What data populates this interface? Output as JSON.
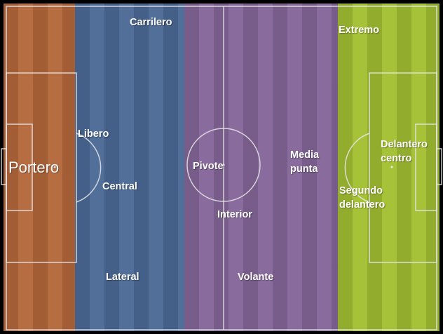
{
  "colors": {
    "goalkeeper_zone": "#b5683c",
    "defense_zone": "#4c6a97",
    "midfield_zone": "#85679a",
    "attack_zone": "#a3c033",
    "pitch_lines": "#e8e8e8"
  },
  "positions": {
    "portero": "Portero",
    "libero": "Libero",
    "central": "Central",
    "lateral": "Lateral",
    "carrilero": "Carrilero",
    "pivote": "Pivote",
    "interior": "Interior",
    "volante": "Volante",
    "media_punta_1": "Media",
    "media_punta_2": "punta",
    "extremo": "Extremo",
    "delantero_centro_1": "Delantero",
    "delantero_centro_2": "centro",
    "segundo_delantero_1": "Segundo",
    "segundo_delantero_2": "delantero"
  }
}
